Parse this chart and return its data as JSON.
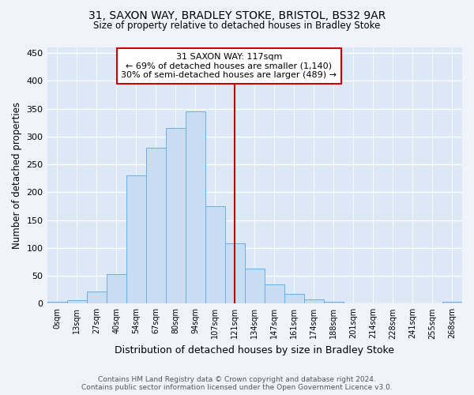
{
  "title1": "31, SAXON WAY, BRADLEY STOKE, BRISTOL, BS32 9AR",
  "title2": "Size of property relative to detached houses in Bradley Stoke",
  "xlabel": "Distribution of detached houses by size in Bradley Stoke",
  "ylabel": "Number of detached properties",
  "categories": [
    "0sqm",
    "13sqm",
    "27sqm",
    "40sqm",
    "54sqm",
    "67sqm",
    "80sqm",
    "94sqm",
    "107sqm",
    "121sqm",
    "134sqm",
    "147sqm",
    "161sqm",
    "174sqm",
    "188sqm",
    "201sqm",
    "214sqm",
    "228sqm",
    "241sqm",
    "255sqm",
    "268sqm"
  ],
  "bar_heights": [
    3,
    6,
    22,
    53,
    230,
    280,
    315,
    345,
    175,
    108,
    63,
    35,
    18,
    7,
    3,
    0,
    0,
    0,
    0,
    0,
    3
  ],
  "bar_color": "#c9ddf2",
  "bar_edge_color": "#6aaee8",
  "plot_bg_color": "#dce8f5",
  "grid_color": "#ffffff",
  "vline_x": 9,
  "vline_color": "#cc0000",
  "annotation_text": "31 SAXON WAY: 117sqm\n← 69% of detached houses are smaller (1,140)\n30% of semi-detached houses are larger (489) →",
  "annotation_box_edgecolor": "#cc0000",
  "footnote": "Contains HM Land Registry data © Crown copyright and database right 2024.\nContains public sector information licensed under the Open Government Licence v3.0.",
  "ylim": [
    0,
    460
  ],
  "yticks": [
    0,
    50,
    100,
    150,
    200,
    250,
    300,
    350,
    400,
    450
  ],
  "fig_bg_color": "#f0f4fa"
}
